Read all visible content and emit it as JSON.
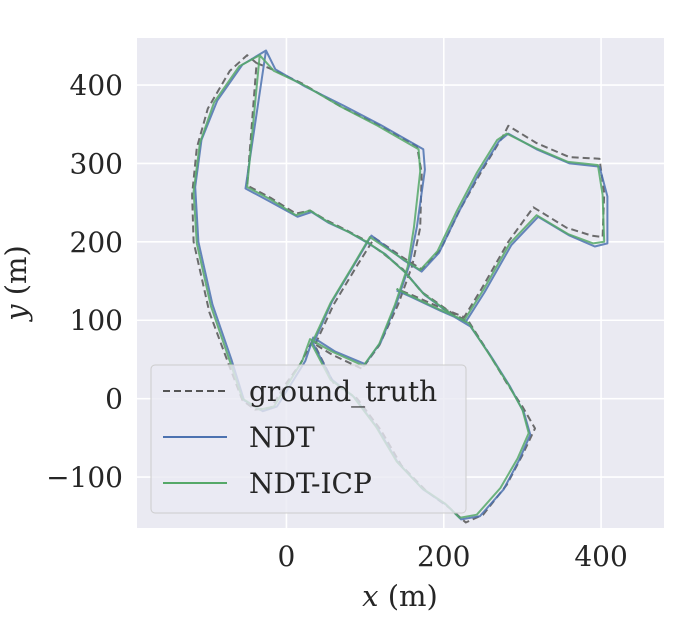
{
  "chart_data": {
    "type": "line",
    "title": "",
    "xlabel": {
      "var": "x",
      "unit": " (m)"
    },
    "ylabel": {
      "var": "y",
      "unit": " (m)"
    },
    "xlim": [
      -190,
      480
    ],
    "ylim": [
      -165,
      460
    ],
    "xticks": [
      0,
      200,
      400
    ],
    "yticks": [
      -100,
      0,
      100,
      200,
      300,
      400
    ],
    "xtick_labels": [
      "0",
      "200",
      "400"
    ],
    "ytick_labels": [
      "−100",
      "0",
      "100",
      "200",
      "300",
      "400"
    ],
    "grid": true,
    "legend": {
      "placement": "lower-left"
    },
    "series": [
      {
        "name": "ground_truth",
        "color": "#555555",
        "dash": true,
        "points": [
          [
            -38,
            428
          ],
          [
            -50,
            438
          ],
          [
            -72,
            418
          ],
          [
            -100,
            370
          ],
          [
            -114,
            320
          ],
          [
            -120,
            260
          ],
          [
            -118,
            200
          ],
          [
            -98,
            110
          ],
          [
            -72,
            40
          ],
          [
            -56,
            -2
          ],
          [
            -40,
            -14
          ],
          [
            -20,
            -12
          ],
          [
            0,
            20
          ],
          [
            18,
            45
          ],
          [
            32,
            72
          ],
          [
            58,
            56
          ],
          [
            96,
            38
          ],
          [
            118,
            68
          ],
          [
            142,
            120
          ],
          [
            160,
            170
          ],
          [
            170,
            218
          ],
          [
            172,
            288
          ],
          [
            166,
            322
          ],
          [
            112,
            352
          ],
          [
            70,
            372
          ],
          [
            20,
            402
          ],
          [
            -18,
            420
          ],
          [
            -38,
            428
          ],
          [
            -50,
            272
          ],
          [
            -20,
            256
          ],
          [
            12,
            236
          ],
          [
            30,
            240
          ],
          [
            50,
            228
          ],
          [
            76,
            215
          ],
          [
            100,
            202
          ],
          [
            122,
            186
          ],
          [
            148,
            165
          ],
          [
            172,
            136
          ],
          [
            212,
            108
          ],
          [
            232,
            98
          ],
          [
            256,
            60
          ],
          [
            280,
            20
          ],
          [
            300,
            -10
          ],
          [
            316,
            -38
          ],
          [
            300,
            -72
          ],
          [
            280,
            -110
          ],
          [
            250,
            -148
          ],
          [
            228,
            -158
          ],
          [
            208,
            -140
          ],
          [
            178,
            -118
          ],
          [
            146,
            -85
          ],
          [
            120,
            -40
          ],
          [
            90,
            0
          ],
          [
            60,
            20
          ],
          [
            36,
            68
          ],
          [
            60,
            120
          ],
          [
            90,
            170
          ],
          [
            112,
            205
          ],
          [
            148,
            180
          ],
          [
            172,
            165
          ],
          [
            196,
            190
          ],
          [
            220,
            240
          ],
          [
            248,
            290
          ],
          [
            276,
            336
          ],
          [
            282,
            348
          ],
          [
            318,
            326
          ],
          [
            360,
            308
          ],
          [
            398,
            306
          ],
          [
            404,
            262
          ],
          [
            402,
            206
          ],
          [
            388,
            208
          ],
          [
            356,
            218
          ],
          [
            314,
            244
          ],
          [
            282,
            200
          ],
          [
            248,
            140
          ],
          [
            226,
            104
          ],
          [
            196,
            116
          ],
          [
            160,
            132
          ],
          [
            140,
            140
          ]
        ]
      },
      {
        "name": "NDT",
        "color": "#4c72b0",
        "dash": false,
        "points": [
          [
            -26,
            444
          ],
          [
            -56,
            426
          ],
          [
            -88,
            380
          ],
          [
            -108,
            330
          ],
          [
            -116,
            270
          ],
          [
            -112,
            200
          ],
          [
            -94,
            120
          ],
          [
            -70,
            50
          ],
          [
            -54,
            -2
          ],
          [
            -30,
            -16
          ],
          [
            -12,
            -10
          ],
          [
            8,
            22
          ],
          [
            24,
            48
          ],
          [
            34,
            78
          ],
          [
            62,
            60
          ],
          [
            100,
            44
          ],
          [
            120,
            72
          ],
          [
            140,
            122
          ],
          [
            156,
            170
          ],
          [
            166,
            220
          ],
          [
            176,
            292
          ],
          [
            174,
            318
          ],
          [
            118,
            350
          ],
          [
            72,
            374
          ],
          [
            24,
            398
          ],
          [
            -14,
            420
          ],
          [
            -26,
            444
          ],
          [
            -52,
            268
          ],
          [
            -22,
            252
          ],
          [
            14,
            232
          ],
          [
            32,
            238
          ],
          [
            54,
            224
          ],
          [
            80,
            212
          ],
          [
            104,
            198
          ],
          [
            126,
            184
          ],
          [
            152,
            160
          ],
          [
            176,
            132
          ],
          [
            214,
            104
          ],
          [
            234,
            92
          ],
          [
            260,
            54
          ],
          [
            284,
            16
          ],
          [
            302,
            -18
          ],
          [
            310,
            -46
          ],
          [
            296,
            -78
          ],
          [
            276,
            -116
          ],
          [
            246,
            -150
          ],
          [
            222,
            -154
          ],
          [
            204,
            -136
          ],
          [
            174,
            -116
          ],
          [
            142,
            -82
          ],
          [
            116,
            -38
          ],
          [
            86,
            2
          ],
          [
            58,
            24
          ],
          [
            34,
            70
          ],
          [
            58,
            124
          ],
          [
            88,
            174
          ],
          [
            108,
            208
          ],
          [
            150,
            176
          ],
          [
            172,
            162
          ],
          [
            194,
            186
          ],
          [
            218,
            236
          ],
          [
            244,
            286
          ],
          [
            270,
            328
          ],
          [
            282,
            338
          ],
          [
            318,
            318
          ],
          [
            360,
            300
          ],
          [
            398,
            296
          ],
          [
            408,
            258
          ],
          [
            408,
            198
          ],
          [
            392,
            194
          ],
          [
            360,
            208
          ],
          [
            320,
            232
          ],
          [
            286,
            196
          ],
          [
            252,
            136
          ],
          [
            228,
            98
          ],
          [
            196,
            112
          ],
          [
            158,
            130
          ],
          [
            140,
            138
          ]
        ]
      },
      {
        "name": "NDT-ICP",
        "color": "#55a868",
        "dash": false,
        "points": [
          [
            -34,
            438
          ],
          [
            -60,
            424
          ],
          [
            -92,
            378
          ],
          [
            -110,
            326
          ],
          [
            -118,
            264
          ],
          [
            -114,
            198
          ],
          [
            -96,
            118
          ],
          [
            -72,
            48
          ],
          [
            -56,
            0
          ],
          [
            -34,
            -14
          ],
          [
            -16,
            -10
          ],
          [
            4,
            22
          ],
          [
            20,
            48
          ],
          [
            30,
            76
          ],
          [
            58,
            60
          ],
          [
            98,
            42
          ],
          [
            118,
            70
          ],
          [
            138,
            120
          ],
          [
            154,
            168
          ],
          [
            162,
            218
          ],
          [
            170,
            290
          ],
          [
            168,
            318
          ],
          [
            116,
            348
          ],
          [
            70,
            372
          ],
          [
            22,
            400
          ],
          [
            -16,
            418
          ],
          [
            -34,
            438
          ],
          [
            -50,
            270
          ],
          [
            -20,
            254
          ],
          [
            12,
            234
          ],
          [
            30,
            240
          ],
          [
            52,
            226
          ],
          [
            78,
            213
          ],
          [
            102,
            200
          ],
          [
            124,
            185
          ],
          [
            150,
            162
          ],
          [
            174,
            134
          ],
          [
            212,
            106
          ],
          [
            232,
            96
          ],
          [
            258,
            56
          ],
          [
            282,
            18
          ],
          [
            300,
            -14
          ],
          [
            308,
            -44
          ],
          [
            294,
            -76
          ],
          [
            272,
            -114
          ],
          [
            242,
            -148
          ],
          [
            220,
            -152
          ],
          [
            202,
            -134
          ],
          [
            172,
            -114
          ],
          [
            140,
            -80
          ],
          [
            114,
            -36
          ],
          [
            84,
            4
          ],
          [
            56,
            24
          ],
          [
            32,
            70
          ],
          [
            56,
            122
          ],
          [
            86,
            172
          ],
          [
            106,
            206
          ],
          [
            148,
            178
          ],
          [
            170,
            164
          ],
          [
            192,
            188
          ],
          [
            216,
            238
          ],
          [
            242,
            288
          ],
          [
            268,
            330
          ],
          [
            280,
            338
          ],
          [
            316,
            320
          ],
          [
            358,
            302
          ],
          [
            396,
            298
          ],
          [
            402,
            260
          ],
          [
            404,
            200
          ],
          [
            390,
            198
          ],
          [
            358,
            210
          ],
          [
            318,
            234
          ],
          [
            284,
            198
          ],
          [
            250,
            138
          ],
          [
            226,
            100
          ],
          [
            194,
            114
          ],
          [
            156,
            132
          ],
          [
            140,
            140
          ]
        ]
      }
    ]
  }
}
